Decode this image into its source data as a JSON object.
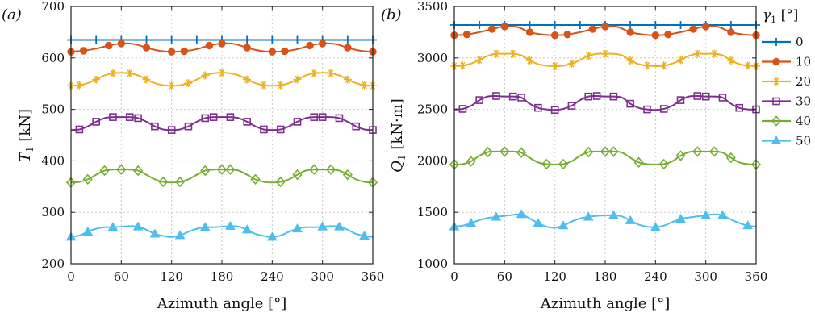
{
  "chart_data": [
    {
      "type": "line",
      "panel_label": "(a)",
      "xlabel": "Azimuth angle [°]",
      "ylabel_main": "T",
      "ylabel_sub": "1",
      "ylabel_unit": " [kN]",
      "xlim": [
        0,
        360
      ],
      "ylim": [
        200,
        700
      ],
      "xticks": [
        0,
        60,
        120,
        180,
        240,
        300,
        360
      ],
      "yticks": [
        200,
        300,
        400,
        500,
        600,
        700
      ],
      "grid": true,
      "series": [
        {
          "name": "0",
          "x": [
            0,
            30,
            60,
            90,
            120,
            150,
            180,
            210,
            240,
            270,
            300,
            330,
            360
          ],
          "y": [
            635,
            635,
            635,
            635,
            635,
            635,
            635,
            635,
            635,
            635,
            635,
            635,
            635
          ]
        },
        {
          "name": "10",
          "x": [
            0,
            15,
            30,
            45,
            60,
            75,
            90,
            105,
            120,
            135,
            150,
            165,
            180,
            195,
            210,
            225,
            240,
            255,
            270,
            285,
            300,
            315,
            330,
            345,
            360
          ],
          "y": [
            612,
            614,
            618,
            624,
            628,
            627,
            620,
            614,
            612,
            613,
            617,
            624,
            628,
            627,
            620,
            614,
            612,
            613,
            617,
            624,
            628,
            627,
            620,
            614,
            612
          ]
        },
        {
          "name": "20",
          "x": [
            0,
            10,
            20,
            30,
            40,
            50,
            60,
            70,
            80,
            90,
            100,
            110,
            120,
            130,
            140,
            150,
            160,
            170,
            180,
            190,
            200,
            210,
            220,
            230,
            240,
            250,
            260,
            270,
            280,
            290,
            300,
            310,
            320,
            330,
            340,
            350,
            360
          ],
          "y": [
            546,
            547,
            551,
            558,
            566,
            570,
            571,
            570,
            566,
            558,
            551,
            547,
            546,
            547,
            551,
            558,
            566,
            570,
            571,
            570,
            566,
            558,
            551,
            547,
            546,
            547,
            551,
            558,
            566,
            570,
            571,
            570,
            566,
            558,
            551,
            547,
            546
          ]
        },
        {
          "name": "30",
          "x": [
            0,
            10,
            20,
            30,
            40,
            50,
            60,
            70,
            80,
            90,
            100,
            110,
            120,
            130,
            140,
            150,
            160,
            170,
            180,
            190,
            200,
            210,
            220,
            230,
            240,
            250,
            260,
            270,
            280,
            290,
            300,
            310,
            320,
            330,
            340,
            350,
            360
          ],
          "y": [
            460,
            461,
            467,
            476,
            483,
            485,
            485,
            485,
            483,
            476,
            467,
            461,
            460,
            461,
            467,
            476,
            483,
            485,
            485,
            485,
            483,
            476,
            467,
            461,
            460,
            461,
            467,
            476,
            483,
            485,
            485,
            485,
            483,
            476,
            467,
            461,
            460
          ]
        },
        {
          "name": "40",
          "x": [
            0,
            10,
            20,
            30,
            40,
            50,
            60,
            70,
            80,
            90,
            100,
            110,
            120,
            130,
            140,
            150,
            160,
            170,
            180,
            190,
            200,
            210,
            220,
            230,
            240,
            250,
            260,
            270,
            280,
            290,
            300,
            310,
            320,
            330,
            340,
            350,
            360
          ],
          "y": [
            358,
            359,
            364,
            373,
            381,
            383,
            383,
            383,
            381,
            373,
            364,
            359,
            358,
            359,
            364,
            373,
            381,
            383,
            383,
            383,
            381,
            373,
            364,
            359,
            358,
            359,
            364,
            373,
            381,
            383,
            383,
            383,
            381,
            373,
            364,
            359,
            358
          ]
        },
        {
          "name": "50",
          "x": [
            0,
            10,
            20,
            30,
            40,
            50,
            60,
            70,
            80,
            90,
            100,
            110,
            120,
            130,
            140,
            150,
            160,
            170,
            180,
            190,
            200,
            210,
            220,
            230,
            240,
            250,
            260,
            270,
            280,
            290,
            300,
            310,
            320,
            330,
            340,
            350,
            360
          ],
          "y": [
            252,
            255,
            262,
            268,
            271,
            271,
            272,
            273,
            272,
            266,
            258,
            254,
            252,
            255,
            262,
            268,
            271,
            271,
            272,
            273,
            272,
            266,
            258,
            254,
            252,
            255,
            262,
            268,
            271,
            271,
            272,
            273,
            272,
            266,
            258,
            254,
            252
          ]
        }
      ]
    },
    {
      "type": "line",
      "panel_label": "(b)",
      "xlabel": "Azimuth angle [°]",
      "ylabel_main": "Q",
      "ylabel_sub": "1",
      "ylabel_unit": " [kN·m]",
      "xlim": [
        0,
        360
      ],
      "ylim": [
        1000,
        3500
      ],
      "xticks": [
        0,
        60,
        120,
        180,
        240,
        300,
        360
      ],
      "yticks": [
        1000,
        1500,
        2000,
        2500,
        3000,
        3500
      ],
      "grid": true,
      "series": [
        {
          "name": "0",
          "x": [
            0,
            30,
            60,
            90,
            120,
            150,
            180,
            210,
            240,
            270,
            300,
            330,
            360
          ],
          "y": [
            3320,
            3320,
            3320,
            3320,
            3320,
            3320,
            3320,
            3320,
            3320,
            3320,
            3320,
            3320,
            3320
          ]
        },
        {
          "name": "10",
          "x": [
            0,
            15,
            30,
            45,
            60,
            75,
            90,
            105,
            120,
            135,
            150,
            165,
            180,
            195,
            210,
            225,
            240,
            255,
            270,
            285,
            300,
            315,
            330,
            345,
            360
          ],
          "y": [
            3220,
            3228,
            3250,
            3280,
            3305,
            3300,
            3250,
            3228,
            3220,
            3228,
            3250,
            3280,
            3305,
            3300,
            3250,
            3228,
            3220,
            3228,
            3250,
            3280,
            3305,
            3300,
            3250,
            3228,
            3220
          ]
        },
        {
          "name": "20",
          "x": [
            0,
            10,
            20,
            30,
            40,
            50,
            60,
            70,
            80,
            90,
            100,
            110,
            120,
            130,
            140,
            150,
            160,
            170,
            180,
            190,
            200,
            210,
            220,
            230,
            240,
            250,
            260,
            270,
            280,
            290,
            300,
            310,
            320,
            330,
            340,
            350,
            360
          ],
          "y": [
            2920,
            2925,
            2945,
            2980,
            3020,
            3040,
            3040,
            3040,
            3025,
            2975,
            2940,
            2925,
            2920,
            2925,
            2945,
            2980,
            3020,
            3040,
            3040,
            3040,
            3025,
            2975,
            2940,
            2925,
            2920,
            2925,
            2945,
            2980,
            3020,
            3040,
            3040,
            3040,
            3025,
            2975,
            2940,
            2925,
            2920
          ]
        },
        {
          "name": "30",
          "x": [
            0,
            10,
            20,
            30,
            40,
            50,
            60,
            70,
            80,
            90,
            100,
            110,
            120,
            130,
            140,
            150,
            160,
            170,
            180,
            190,
            200,
            210,
            220,
            230,
            240,
            250,
            260,
            270,
            280,
            290,
            300,
            310,
            320,
            330,
            340,
            350,
            360
          ],
          "y": [
            2500,
            2505,
            2535,
            2590,
            2625,
            2630,
            2625,
            2625,
            2615,
            2555,
            2515,
            2500,
            2495,
            2505,
            2535,
            2590,
            2625,
            2630,
            2625,
            2625,
            2615,
            2555,
            2515,
            2500,
            2495,
            2505,
            2535,
            2590,
            2625,
            2630,
            2625,
            2625,
            2615,
            2555,
            2515,
            2500,
            2500
          ]
        },
        {
          "name": "40",
          "x": [
            0,
            10,
            20,
            30,
            40,
            50,
            60,
            70,
            80,
            90,
            100,
            110,
            120,
            130,
            140,
            150,
            160,
            170,
            180,
            190,
            200,
            210,
            220,
            230,
            240,
            250,
            260,
            270,
            280,
            290,
            300,
            310,
            320,
            330,
            340,
            350,
            360
          ],
          "y": [
            1965,
            1968,
            1995,
            2050,
            2085,
            2090,
            2090,
            2090,
            2080,
            2030,
            1985,
            1968,
            1965,
            1968,
            1995,
            2050,
            2085,
            2090,
            2090,
            2090,
            2080,
            2030,
            1985,
            1968,
            1965,
            1968,
            1995,
            2050,
            2085,
            2090,
            2090,
            2090,
            2080,
            2030,
            1985,
            1968,
            1965
          ]
        },
        {
          "name": "50",
          "x": [
            0,
            10,
            20,
            30,
            40,
            50,
            60,
            70,
            80,
            90,
            100,
            110,
            120,
            130,
            140,
            150,
            160,
            170,
            180,
            190,
            200,
            210,
            220,
            230,
            240,
            250,
            260,
            270,
            280,
            290,
            300,
            310,
            320,
            330,
            340,
            350,
            360
          ],
          "y": [
            1360,
            1370,
            1395,
            1425,
            1445,
            1455,
            1465,
            1475,
            1480,
            1440,
            1395,
            1360,
            1350,
            1370,
            1410,
            1440,
            1455,
            1465,
            1470,
            1470,
            1460,
            1420,
            1380,
            1360,
            1355,
            1370,
            1405,
            1435,
            1450,
            1460,
            1470,
            1480,
            1470,
            1430,
            1395,
            1370,
            1360
          ]
        }
      ]
    }
  ],
  "legend": {
    "title_main": "γ",
    "title_sub": "1",
    "title_unit": " [°]",
    "placement": "right",
    "entries": [
      "0",
      "10",
      "20",
      "30",
      "40",
      "50"
    ]
  },
  "series_style": [
    {
      "color": "#0072BD",
      "marker": "plus"
    },
    {
      "color": "#D95319",
      "marker": "circle"
    },
    {
      "color": "#EDB120",
      "marker": "star"
    },
    {
      "color": "#7E2F8E",
      "marker": "square"
    },
    {
      "color": "#77AC30",
      "marker": "diamond"
    },
    {
      "color": "#4DBEEE",
      "marker": "triangle"
    }
  ],
  "marker_every": [
    [
      0,
      30,
      60,
      90,
      120,
      150,
      180,
      210,
      240,
      270,
      300,
      330,
      360
    ],
    [
      0,
      15,
      45,
      60,
      90,
      120,
      135,
      165,
      180,
      210,
      240,
      255,
      285,
      300,
      330,
      360
    ],
    [
      0,
      10,
      30,
      50,
      70,
      90,
      120,
      140,
      160,
      180,
      210,
      230,
      250,
      270,
      290,
      310,
      330,
      350,
      360
    ],
    [
      10,
      30,
      50,
      70,
      80,
      100,
      120,
      140,
      160,
      170,
      190,
      210,
      230,
      250,
      270,
      290,
      300,
      320,
      340,
      360
    ],
    [
      0,
      20,
      40,
      60,
      80,
      110,
      130,
      160,
      180,
      190,
      220,
      250,
      270,
      290,
      310,
      330,
      360
    ],
    [
      0,
      20,
      50,
      80,
      100,
      130,
      160,
      190,
      210,
      240,
      270,
      300,
      320,
      350
    ]
  ]
}
